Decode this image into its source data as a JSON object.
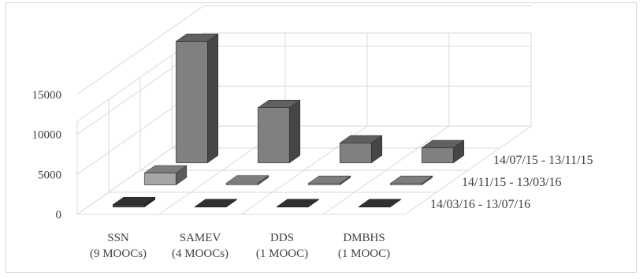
{
  "chart_data": {
    "type": "bar",
    "subtype": "3d-column",
    "categories": [
      "SSN|(9 MOOCs)",
      "SAMEV|(4 MOOCs)",
      "DDS|(1 MOOC)",
      "DMBHS|(1 MOOC)"
    ],
    "yticks": [
      0,
      5000,
      10000,
      15000
    ],
    "ylim": [
      0,
      20000
    ],
    "grid": true,
    "legend": "none",
    "series": [
      {
        "name": "14/07/15 - 13/11/15",
        "values": [
          15200,
          6900,
          2500,
          1900
        ],
        "color": "#808080"
      },
      {
        "name": "14/11/15 - 13/03/16",
        "values": [
          1500,
          250,
          200,
          200
        ],
        "color": "#a6a6a6"
      },
      {
        "name": "14/03/16 - 13/07/16",
        "values": [
          300,
          50,
          50,
          50
        ],
        "color": "#404040"
      }
    ]
  }
}
